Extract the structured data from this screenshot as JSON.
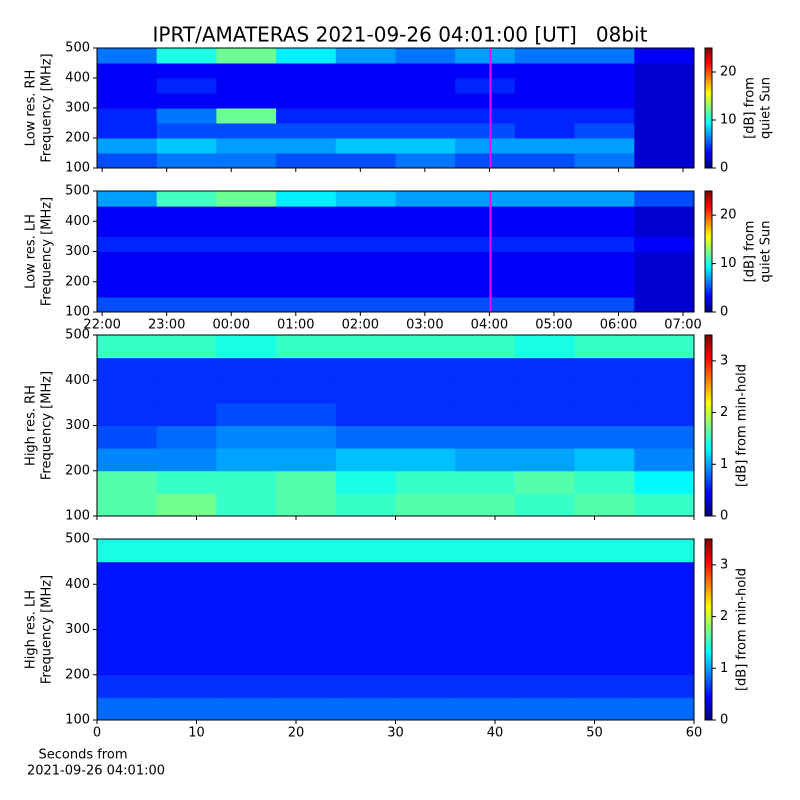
{
  "chart_data": [
    {
      "type": "heatmap",
      "title": "IPRT/AMATERAS 2021-09-26 04:01:00 [UT]   08bit",
      "ylabel": [
        "Low res. RH",
        "Frequency [MHz]"
      ],
      "xlim": [
        21.92,
        31.17
      ],
      "xticks": [
        22,
        23,
        24,
        25,
        26,
        27,
        28,
        29,
        30,
        31
      ],
      "xticklabels": false,
      "ylim": [
        100,
        500
      ],
      "yticks": [
        100,
        200,
        300,
        400,
        500
      ],
      "colormap": "jet",
      "clim": [
        0,
        25
      ],
      "cticks": [
        0,
        10,
        20
      ],
      "clabel": [
        "[dB] from",
        "quiet Sun"
      ],
      "marker_x": 28.017,
      "marker_color": "#ff00ff",
      "z": [
        [
          5,
          6,
          6,
          5,
          5,
          6,
          5,
          5,
          6,
          2
        ],
        [
          7,
          8,
          7,
          7,
          8,
          8,
          7,
          7,
          7,
          2
        ],
        [
          4,
          5,
          5,
          5,
          5,
          5,
          5,
          4,
          5,
          2
        ],
        [
          4,
          6,
          12,
          4,
          4,
          4,
          4,
          4,
          4,
          2
        ],
        [
          3,
          3,
          3,
          3,
          3,
          3,
          3,
          3,
          3,
          2
        ],
        [
          3,
          4,
          3,
          3,
          3,
          3,
          4,
          3,
          3,
          2
        ],
        [
          3,
          3,
          3,
          3,
          3,
          3,
          3,
          3,
          3,
          2
        ],
        [
          6,
          10,
          12,
          9,
          7,
          6,
          7,
          6,
          6,
          3
        ]
      ]
    },
    {
      "type": "heatmap",
      "ylabel": [
        "Low res. LH",
        "Frequency [MHz]"
      ],
      "xlim": [
        21.92,
        31.17
      ],
      "xticks": [
        {
          "value": 22,
          "label": "22:00"
        },
        {
          "value": 23,
          "label": "23:00"
        },
        {
          "value": 24,
          "label": "00:00"
        },
        {
          "value": 25,
          "label": "01:00"
        },
        {
          "value": 26,
          "label": "02:00"
        },
        {
          "value": 27,
          "label": "03:00"
        },
        {
          "value": 28,
          "label": "04:00"
        },
        {
          "value": 29,
          "label": "05:00"
        },
        {
          "value": 30,
          "label": "06:00"
        },
        {
          "value": 31,
          "label": "07:00"
        }
      ],
      "xticklabels": true,
      "ylim": [
        100,
        500
      ],
      "yticks": [
        100,
        200,
        300,
        400,
        500
      ],
      "colormap": "jet",
      "clim": [
        0,
        25
      ],
      "cticks": [
        0,
        10,
        20
      ],
      "clabel": [
        "[dB] from",
        "quiet Sun"
      ],
      "marker_x": 28.017,
      "marker_color": "#ff00ff",
      "z": [
        [
          5,
          5,
          5,
          5,
          5,
          5,
          5,
          5,
          5,
          2
        ],
        [
          3,
          3,
          3,
          3,
          3,
          3,
          3,
          3,
          3,
          2
        ],
        [
          3,
          3,
          3,
          3,
          3,
          3,
          3,
          3,
          3,
          2
        ],
        [
          3,
          3,
          3,
          3,
          3,
          3,
          3,
          3,
          3,
          2
        ],
        [
          4,
          4,
          4,
          4,
          4,
          4,
          4,
          4,
          4,
          3
        ],
        [
          3,
          3,
          3,
          3,
          3,
          3,
          3,
          3,
          3,
          2
        ],
        [
          3,
          3,
          3,
          3,
          3,
          3,
          3,
          3,
          3,
          2
        ],
        [
          7,
          11,
          12,
          9,
          8,
          7,
          7,
          7,
          7,
          5
        ]
      ]
    },
    {
      "type": "heatmap",
      "ylabel": [
        "High res. RH",
        "Frequency [MHz]"
      ],
      "xlim": [
        0,
        60
      ],
      "xticks": [
        0,
        10,
        20,
        30,
        40,
        50,
        60
      ],
      "xticklabels": false,
      "ylim": [
        100,
        500
      ],
      "yticks": [
        100,
        200,
        300,
        400,
        500
      ],
      "colormap": "jet",
      "clim": [
        0,
        3.5
      ],
      "cticks": [
        0,
        1,
        2,
        3
      ],
      "clabel": [
        "[dB] from min-hold"
      ],
      "z": [
        [
          1.6,
          1.7,
          1.5,
          1.6,
          1.5,
          1.6,
          1.6,
          1.5,
          1.6,
          1.5
        ],
        [
          1.6,
          1.5,
          1.5,
          1.6,
          1.4,
          1.5,
          1.5,
          1.6,
          1.5,
          1.3
        ],
        [
          0.9,
          0.9,
          1.0,
          1.0,
          1.1,
          1.1,
          1.0,
          1.0,
          1.1,
          0.9
        ],
        [
          0.7,
          0.8,
          0.9,
          0.9,
          0.8,
          0.8,
          0.8,
          0.8,
          0.8,
          0.8
        ],
        [
          0.6,
          0.6,
          0.7,
          0.7,
          0.6,
          0.6,
          0.6,
          0.6,
          0.6,
          0.6
        ],
        [
          0.6,
          0.6,
          0.6,
          0.6,
          0.6,
          0.6,
          0.6,
          0.6,
          0.6,
          0.6
        ],
        [
          0.6,
          0.6,
          0.6,
          0.6,
          0.6,
          0.6,
          0.6,
          0.6,
          0.6,
          0.6
        ],
        [
          1.5,
          1.5,
          1.4,
          1.5,
          1.5,
          1.5,
          1.5,
          1.4,
          1.5,
          1.5
        ]
      ]
    },
    {
      "type": "heatmap",
      "ylabel": [
        "High res. LH",
        "Frequency [MHz]"
      ],
      "xlabel": [
        "Seconds from",
        "2021-09-26 04:01:00"
      ],
      "xlim": [
        0,
        60
      ],
      "xticks": [
        0,
        10,
        20,
        30,
        40,
        50,
        60
      ],
      "xticklabels": true,
      "ylim": [
        100,
        500
      ],
      "yticks": [
        100,
        200,
        300,
        400,
        500
      ],
      "colormap": "jet",
      "clim": [
        0,
        3.5
      ],
      "cticks": [
        0,
        1,
        2,
        3
      ],
      "clabel": [
        "[dB] from min-hold"
      ],
      "z": [
        [
          0.8,
          0.8,
          0.8,
          0.8,
          0.8,
          0.8,
          0.8,
          0.8,
          0.8,
          0.8
        ],
        [
          0.6,
          0.6,
          0.6,
          0.6,
          0.6,
          0.6,
          0.6,
          0.6,
          0.6,
          0.6
        ],
        [
          0.5,
          0.5,
          0.5,
          0.5,
          0.5,
          0.5,
          0.5,
          0.5,
          0.5,
          0.5
        ],
        [
          0.5,
          0.5,
          0.5,
          0.5,
          0.5,
          0.5,
          0.5,
          0.5,
          0.5,
          0.5
        ],
        [
          0.5,
          0.5,
          0.5,
          0.5,
          0.5,
          0.5,
          0.5,
          0.5,
          0.5,
          0.5
        ],
        [
          0.5,
          0.5,
          0.5,
          0.5,
          0.5,
          0.5,
          0.5,
          0.5,
          0.5,
          0.5
        ],
        [
          0.5,
          0.5,
          0.5,
          0.5,
          0.5,
          0.5,
          0.5,
          0.5,
          0.5,
          0.5
        ],
        [
          1.4,
          1.4,
          1.4,
          1.4,
          1.4,
          1.4,
          1.4,
          1.4,
          1.4,
          1.4
        ]
      ]
    }
  ]
}
